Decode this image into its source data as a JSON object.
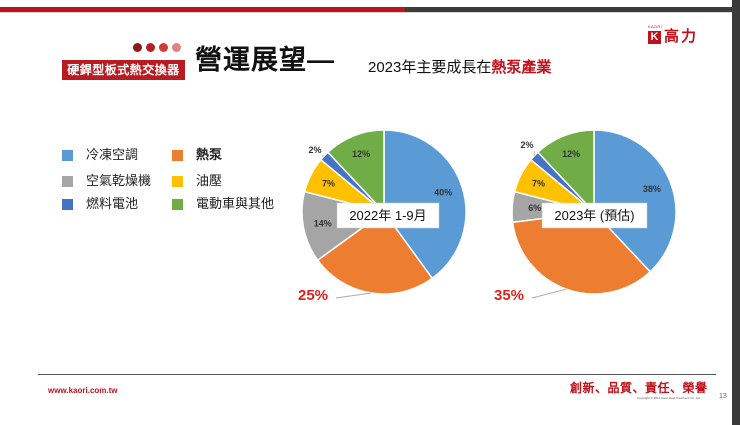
{
  "header": {
    "badge": "硬銲型板式熱交換器",
    "title": "營運展望—",
    "subtitle_prefix": "2023年主要成長在",
    "subtitle_highlight": "熱泵產業",
    "dot_colors": [
      "#8b1a1a",
      "#b21f24",
      "#d23a3a",
      "#e88080"
    ]
  },
  "logo": {
    "small": "KAORI",
    "mark": "K",
    "text": "高力"
  },
  "colors": {
    "brand_red": "#c0121b",
    "accent": "#b81c22"
  },
  "chart_data": [
    {
      "type": "pie",
      "title": "2022年 1-9月",
      "legend_location": "left",
      "slices": [
        {
          "label": "冷凍空調",
          "value": 40,
          "color": "#5b9bd5",
          "data_label": "40%"
        },
        {
          "label": "熱泵",
          "value": 25,
          "color": "#ed7d31",
          "data_label": "25%"
        },
        {
          "label": "空氣乾燥機",
          "value": 14,
          "color": "#a5a5a5",
          "data_label": "14%"
        },
        {
          "label": "油壓",
          "value": 7,
          "color": "#ffc000",
          "data_label": "7%"
        },
        {
          "label": "燃料電池",
          "value": 2,
          "color": "#4472c4",
          "data_label": "2%"
        },
        {
          "label": "電動車與其他",
          "value": 12,
          "color": "#70ad47",
          "data_label": "12%"
        }
      ]
    },
    {
      "type": "pie",
      "title": "2023年 (預估)",
      "legend_location": "left",
      "slices": [
        {
          "label": "冷凍空調",
          "value": 38,
          "color": "#5b9bd5",
          "data_label": "38%"
        },
        {
          "label": "熱泵",
          "value": 35,
          "color": "#ed7d31",
          "data_label": "35%"
        },
        {
          "label": "空氣乾燥機",
          "value": 6,
          "color": "#a5a5a5",
          "data_label": "6%"
        },
        {
          "label": "油壓",
          "value": 7,
          "color": "#ffc000",
          "data_label": "7%"
        },
        {
          "label": "燃料電池",
          "value": 2,
          "color": "#4472c4",
          "data_label": "2%"
        },
        {
          "label": "電動車與其他",
          "value": 12,
          "color": "#70ad47",
          "data_label": "12%"
        }
      ]
    }
  ],
  "legend": [
    {
      "label": "冷凍空調",
      "color": "#5b9bd5",
      "bold": false
    },
    {
      "label": "熱泵",
      "color": "#ed7d31",
      "bold": true
    },
    {
      "label": "空氣乾燥機",
      "color": "#a5a5a5",
      "bold": false
    },
    {
      "label": "油壓",
      "color": "#ffc000",
      "bold": false
    },
    {
      "label": "燃料電池",
      "color": "#4472c4",
      "bold": false
    },
    {
      "label": "電動車與其他",
      "color": "#70ad47",
      "bold": false
    }
  ],
  "footer": {
    "url": "www.kaori.com.tw",
    "slogan": "創新、品質、責任、榮譽",
    "copyright": "Copyright © 2011 Kaori Heat Treatment Co.,Ltd.",
    "page_number": "13"
  }
}
